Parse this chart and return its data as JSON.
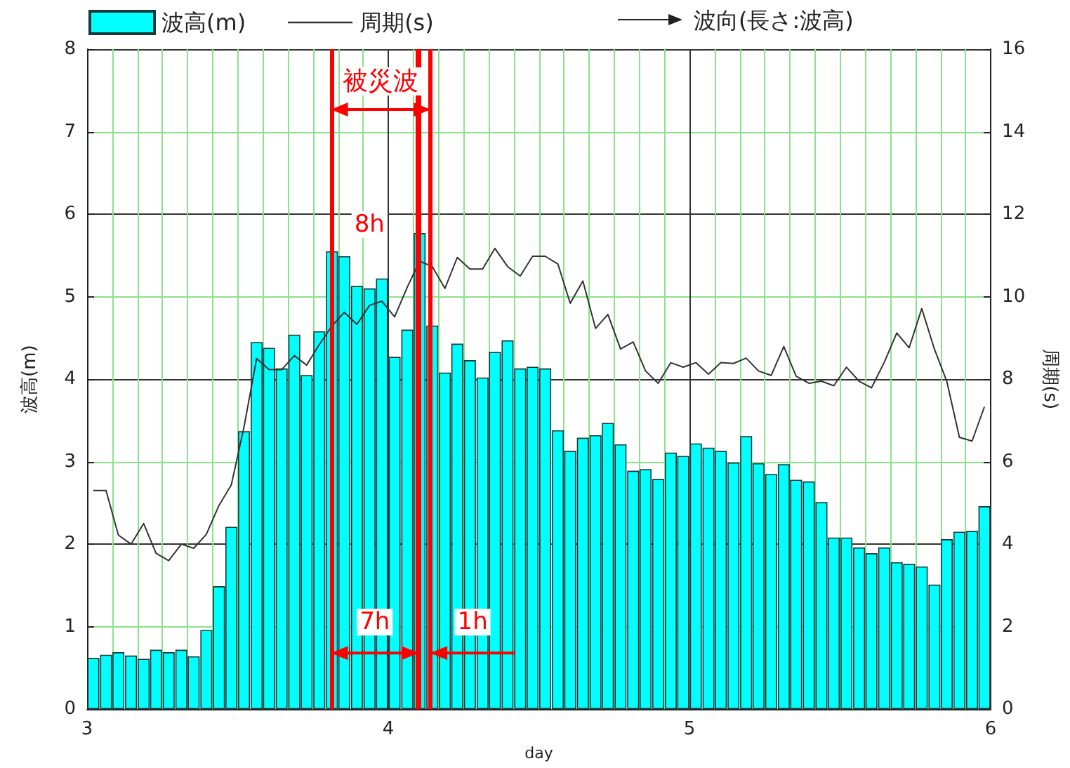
{
  "chart_data": {
    "type": "bar",
    "xlabel": "day",
    "ylabel": "波高(m)",
    "y2label": "周期(s)",
    "x": [
      3.021,
      3.063,
      3.104,
      3.146,
      3.188,
      3.229,
      3.271,
      3.313,
      3.354,
      3.396,
      3.438,
      3.479,
      3.521,
      3.563,
      3.604,
      3.646,
      3.688,
      3.729,
      3.771,
      3.813,
      3.854,
      3.896,
      3.938,
      3.979,
      4.021,
      4.063,
      4.104,
      4.146,
      4.188,
      4.229,
      4.271,
      4.313,
      4.354,
      4.396,
      4.438,
      4.479,
      4.521,
      4.563,
      4.604,
      4.646,
      4.688,
      4.729,
      4.771,
      4.813,
      4.854,
      4.896,
      4.938,
      4.979,
      5.021,
      5.063,
      5.104,
      5.146,
      5.188,
      5.229,
      5.271,
      5.313,
      5.354,
      5.396,
      5.438,
      5.479,
      5.521,
      5.563,
      5.604,
      5.646,
      5.688,
      5.729,
      5.771,
      5.813,
      5.854,
      5.896,
      5.938,
      5.979
    ],
    "series": [
      {
        "name": "波高(m)",
        "color": "#00ffff",
        "values": [
          0.62,
          0.66,
          0.69,
          0.65,
          0.61,
          0.72,
          0.69,
          0.72,
          0.64,
          0.96,
          1.49,
          2.21,
          3.37,
          4.45,
          4.38,
          4.13,
          4.54,
          4.05,
          4.58,
          5.55,
          5.49,
          5.13,
          5.1,
          5.22,
          4.27,
          4.6,
          5.77,
          4.65,
          4.08,
          4.43,
          4.23,
          4.02,
          4.33,
          4.47,
          4.13,
          4.15,
          4.13,
          3.38,
          3.13,
          3.29,
          3.32,
          3.47,
          3.21,
          2.89,
          2.91,
          2.79,
          3.11,
          3.07,
          3.22,
          3.17,
          3.13,
          2.99,
          3.31,
          2.98,
          2.85,
          2.97,
          2.78,
          2.76,
          2.51,
          2.08,
          2.08,
          1.96,
          1.89,
          1.96,
          1.78,
          1.76,
          1.73,
          1.51,
          2.06,
          2.15,
          2.16,
          2.46
        ]
      },
      {
        "name": "周期(s)",
        "type": "line",
        "axis": "y2",
        "color": "#333333",
        "values": [
          5.3,
          5.3,
          4.22,
          4.0,
          4.5,
          3.78,
          3.6,
          4.0,
          3.9,
          4.24,
          4.94,
          5.44,
          6.84,
          8.5,
          8.23,
          8.23,
          8.57,
          8.34,
          8.84,
          9.29,
          9.62,
          9.33,
          9.79,
          9.89,
          9.51,
          10.23,
          10.86,
          10.73,
          10.2,
          10.95,
          10.67,
          10.67,
          11.17,
          10.73,
          10.5,
          10.98,
          10.98,
          10.79,
          9.84,
          10.38,
          9.23,
          9.57,
          8.73,
          8.9,
          8.2,
          7.9,
          8.4,
          8.29,
          8.4,
          8.12,
          8.4,
          8.38,
          8.51,
          8.2,
          8.09,
          8.79,
          8.07,
          7.9,
          7.95,
          7.84,
          8.29,
          7.95,
          7.79,
          8.4,
          9.12,
          8.76,
          9.71,
          8.73,
          7.95,
          6.59,
          6.5,
          7.33
        ]
      }
    ],
    "xlim": [
      3,
      6
    ],
    "xticks": [
      3,
      4,
      5,
      6
    ],
    "ylim": [
      0,
      8
    ],
    "yticks": [
      0,
      1,
      2,
      3,
      4,
      5,
      6,
      7,
      8
    ],
    "y2lim": [
      0,
      16
    ],
    "y2ticks": [
      0,
      2,
      4,
      6,
      8,
      10,
      12,
      14,
      16
    ],
    "grid": true,
    "legend": "top",
    "marker": "none",
    "line_style": "solid",
    "ref_lines": [
      {
        "axis": "x",
        "value": 3.81,
        "label": null,
        "color": "#ff0000"
      },
      {
        "axis": "x",
        "value": 4.14,
        "label": null,
        "color": "#ff0000"
      },
      {
        "axis": "x",
        "value": 4.1,
        "label": null,
        "color": "#ff0000"
      }
    ],
    "annotations": [
      "被災波",
      "8h",
      "7h",
      "1h",
      "波向(長さ:波高)"
    ]
  }
}
